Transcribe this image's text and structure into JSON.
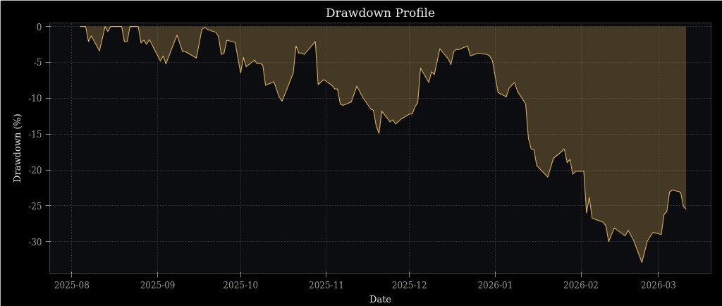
{
  "chart_data": {
    "type": "area",
    "title": "Drawdown Profile",
    "xlabel": "Date",
    "ylabel": "Drawdown (%)",
    "x": [
      "2025-08-04",
      "2025-08-06",
      "2025-08-07",
      "2025-08-08",
      "2025-08-11",
      "2025-08-13",
      "2025-08-14",
      "2025-08-15",
      "2025-08-19",
      "2025-08-20",
      "2025-08-21",
      "2025-08-22",
      "2025-08-25",
      "2025-08-26",
      "2025-08-27",
      "2025-08-28",
      "2025-08-29",
      "2025-09-02",
      "2025-09-03",
      "2025-09-04",
      "2025-09-08",
      "2025-09-10",
      "2025-09-11",
      "2025-09-15",
      "2025-09-17",
      "2025-09-18",
      "2025-09-19",
      "2025-09-22",
      "2025-09-23",
      "2025-09-24",
      "2025-09-25",
      "2025-09-26",
      "2025-09-29",
      "2025-10-01",
      "2025-10-02",
      "2025-10-03",
      "2025-10-06",
      "2025-10-07",
      "2025-10-08",
      "2025-10-09",
      "2025-10-10",
      "2025-10-13",
      "2025-10-15",
      "2025-10-16",
      "2025-10-20",
      "2025-10-21",
      "2025-10-22",
      "2025-10-23",
      "2025-10-24",
      "2025-10-28",
      "2025-10-29",
      "2025-10-31",
      "2025-11-03",
      "2025-11-04",
      "2025-11-05",
      "2025-11-06",
      "2025-11-07",
      "2025-11-10",
      "2025-11-12",
      "2025-11-14",
      "2025-11-17",
      "2025-11-18",
      "2025-11-19",
      "2025-11-20",
      "2025-11-21",
      "2025-11-24",
      "2025-11-25",
      "2025-11-26",
      "2025-11-28",
      "2025-12-01",
      "2025-12-02",
      "2025-12-03",
      "2025-12-04",
      "2025-12-05",
      "2025-12-08",
      "2025-12-09",
      "2025-12-10",
      "2025-12-12",
      "2025-12-15",
      "2025-12-16",
      "2025-12-17",
      "2025-12-18",
      "2025-12-19",
      "2025-12-22",
      "2025-12-23",
      "2025-12-26",
      "2025-12-29",
      "2025-12-30",
      "2025-12-31",
      "2026-01-02",
      "2026-01-05",
      "2026-01-06",
      "2026-01-08",
      "2026-01-09",
      "2026-01-12",
      "2026-01-13",
      "2026-01-14",
      "2026-01-15",
      "2026-01-16",
      "2026-01-20",
      "2026-01-22",
      "2026-01-26",
      "2026-01-27",
      "2026-01-28",
      "2026-01-29",
      "2026-01-30",
      "2026-02-02",
      "2026-02-03",
      "2026-02-04",
      "2026-02-05",
      "2026-02-09",
      "2026-02-10",
      "2026-02-11",
      "2026-02-13",
      "2026-02-17",
      "2026-02-18",
      "2026-02-20",
      "2026-02-23",
      "2026-02-25",
      "2026-02-27",
      "2026-03-02",
      "2026-03-03",
      "2026-03-04",
      "2026-03-05",
      "2026-03-06",
      "2026-03-09",
      "2026-03-10",
      "2026-03-11"
    ],
    "series": [
      {
        "color": "#d9ad5b",
        "values": [
          0,
          0,
          -2.1,
          -1.3,
          -3.4,
          0,
          -0.7,
          0,
          0,
          -2.1,
          -2.1,
          0,
          0,
          -2.3,
          -1.9,
          -2.5,
          -1.8,
          -4.8,
          -4.1,
          -5.2,
          -1.2,
          -3.5,
          -3.5,
          -4.4,
          -0.4,
          -0.1,
          -0.4,
          -0.8,
          -1.4,
          -3.9,
          -3.7,
          -1.9,
          -2.2,
          -6.5,
          -4.3,
          -5.6,
          -4.7,
          -5.2,
          -5.1,
          -5.4,
          -8.2,
          -7.7,
          -9.9,
          -10.4,
          -6.5,
          -2.7,
          -3.7,
          -3.7,
          -3.9,
          -2.1,
          -8.1,
          -7.4,
          -8.2,
          -8.7,
          -8.7,
          -10.8,
          -11.0,
          -10.5,
          -8.3,
          -9.8,
          -11.5,
          -11.7,
          -13.9,
          -14.9,
          -11.8,
          -13.3,
          -13.0,
          -13.6,
          -12.9,
          -12.2,
          -12.2,
          -11.2,
          -10.6,
          -5.8,
          -7.8,
          -6.3,
          -6.7,
          -3.1,
          -4.5,
          -5.3,
          -3.5,
          -3.2,
          -3.2,
          -2.7,
          -4.1,
          -3.7,
          -3.9,
          -4.1,
          -4.8,
          -9.2,
          -9.8,
          -8.6,
          -7.8,
          -9.0,
          -10.8,
          -15.6,
          -17.1,
          -17.2,
          -19.4,
          -21.0,
          -18.4,
          -17.1,
          -19.0,
          -18.5,
          -20.6,
          -20.2,
          -20.2,
          -26.0,
          -23.8,
          -26.7,
          -27.3,
          -27.8,
          -30.0,
          -28.1,
          -29.2,
          -28.4,
          -29.8,
          -32.9,
          -29.9,
          -28.7,
          -29.0,
          -26.2,
          -25.8,
          -23.1,
          -22.8,
          -23.1,
          -25.1,
          -25.5
        ]
      }
    ],
    "xlim": [
      "2025-07-24",
      "2026-03-20"
    ],
    "xticks": [
      {
        "value": "2025-08-01",
        "label": "2025-08"
      },
      {
        "value": "2025-09-01",
        "label": "2025-09"
      },
      {
        "value": "2025-10-01",
        "label": "2025-10"
      },
      {
        "value": "2025-11-01",
        "label": "2025-11"
      },
      {
        "value": "2025-12-01",
        "label": "2025-12"
      },
      {
        "value": "2026-01-01",
        "label": "2026-01"
      },
      {
        "value": "2026-02-01",
        "label": "2026-02"
      },
      {
        "value": "2026-03-01",
        "label": "2026-03"
      }
    ],
    "ylim": [
      -34.4,
      0.5
    ],
    "yticks": [
      0,
      -5,
      -10,
      -15,
      -20,
      -25,
      -30
    ],
    "grid": true,
    "line_style": "solid"
  }
}
